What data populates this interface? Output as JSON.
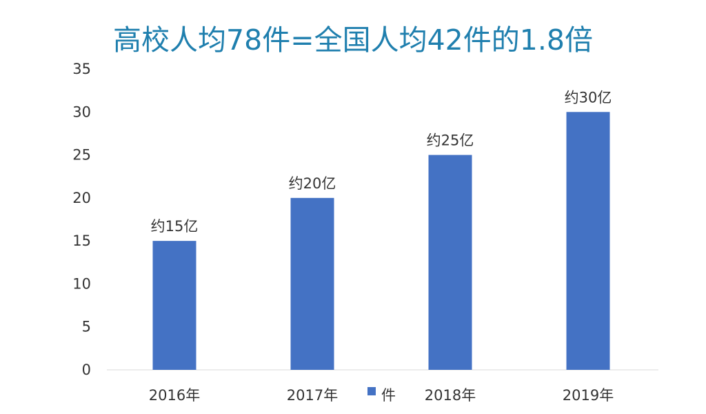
{
  "chart_data": {
    "type": "bar",
    "title": "高校人均78件=全国人均42件的1.8倍",
    "categories": [
      "2016年",
      "2017年",
      "2018年",
      "2019年"
    ],
    "series": [
      {
        "name": "件",
        "values": [
          15,
          20,
          25,
          30
        ],
        "data_labels": [
          "约15亿",
          "约20亿",
          "约25亿",
          "约30亿"
        ],
        "color": "#4472c4"
      }
    ],
    "yticks": [
      "0",
      "5",
      "10",
      "15",
      "20",
      "25",
      "30",
      "35"
    ],
    "ylim": [
      0,
      35
    ],
    "xlabel": "",
    "ylabel": "",
    "legend_position": "bottom",
    "grid": false,
    "title_color": "#1f7fae"
  }
}
